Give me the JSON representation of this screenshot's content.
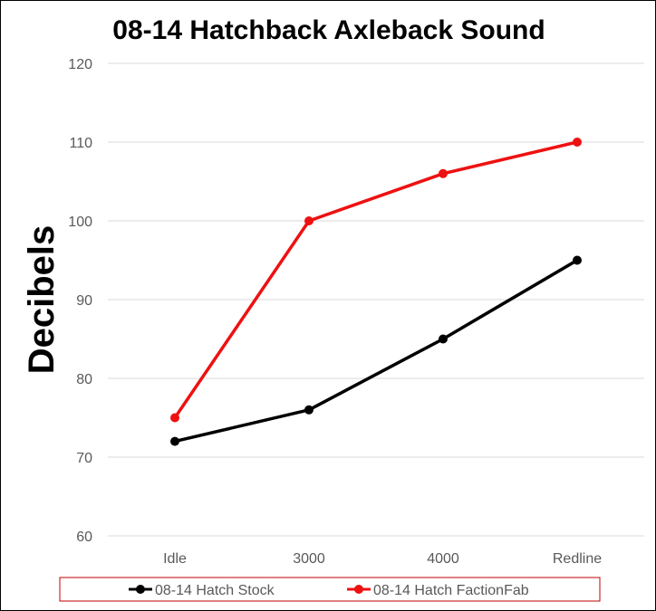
{
  "chart_data": {
    "type": "line",
    "title": "08-14 Hatchback Axleback Sound",
    "xlabel": "",
    "ylabel": "Decibels",
    "categories": [
      "Idle",
      "3000",
      "4000",
      "Redline"
    ],
    "ylim": [
      60,
      120
    ],
    "yticks": [
      60,
      70,
      80,
      90,
      100,
      110,
      120
    ],
    "grid": true,
    "legend_position": "bottom",
    "series": [
      {
        "name": "08-14 Hatch Stock",
        "color": "#000000",
        "values": [
          72,
          76,
          85,
          95
        ]
      },
      {
        "name": "08-14 Hatch FactionFab",
        "color": "#ee1111",
        "values": [
          75,
          100,
          106,
          110
        ]
      }
    ]
  },
  "colors": {
    "gridline": "#d9d9d9",
    "tick_text": "#595959",
    "legend_border": "#c00000"
  }
}
